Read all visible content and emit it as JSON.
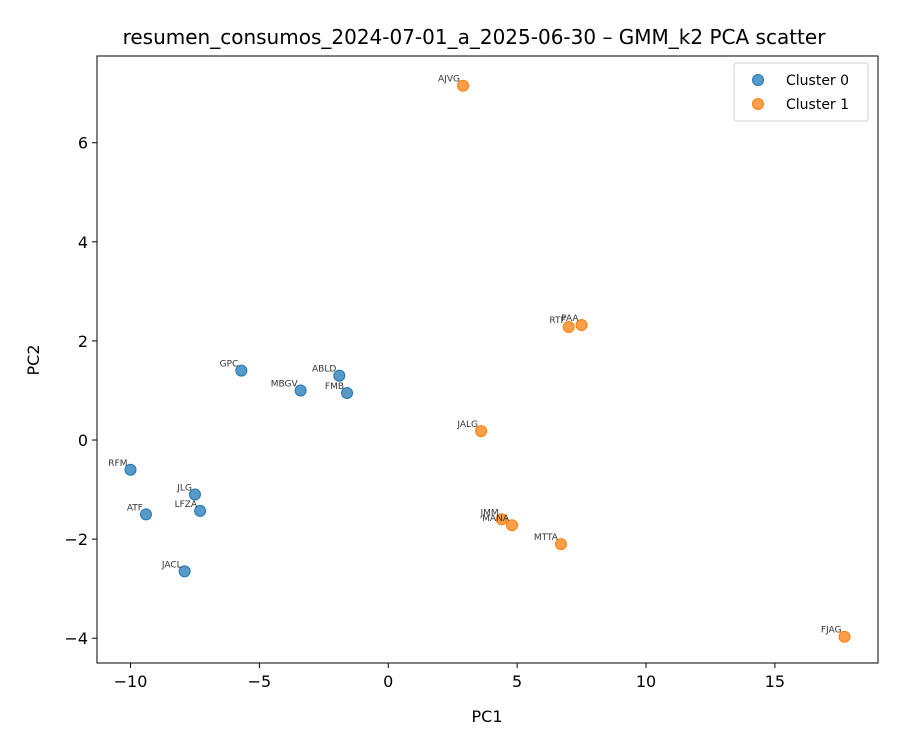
{
  "chart_data": {
    "type": "scatter",
    "title": "resumen_consumos_2024-07-01_a_2025-06-30 – GMM_k2 PCA scatter",
    "xlabel": "PC1",
    "ylabel": "PC2",
    "xlim": [
      -11.3,
      19.0
    ],
    "ylim": [
      -4.5,
      7.75
    ],
    "xticks": [
      -10,
      -5,
      0,
      5,
      10,
      15
    ],
    "yticks": [
      -4,
      -2,
      0,
      2,
      4,
      6
    ],
    "xtick_labels": [
      "−10",
      "−5",
      "0",
      "5",
      "10",
      "15"
    ],
    "ytick_labels": [
      "−4",
      "−2",
      "0",
      "2",
      "4",
      "6"
    ],
    "grid": false,
    "legend_position": "top-right",
    "series": [
      {
        "name": "Cluster 0",
        "color": "#1f77b4",
        "points": [
          {
            "label": "RFM",
            "x": -10.0,
            "y": -0.6
          },
          {
            "label": "ATF",
            "x": -9.4,
            "y": -1.5
          },
          {
            "label": "JACL",
            "x": -7.9,
            "y": -2.65
          },
          {
            "label": "JLG",
            "x": -7.5,
            "y": -1.1
          },
          {
            "label": "LFZA",
            "x": -7.3,
            "y": -1.43
          },
          {
            "label": "GPC",
            "x": -5.7,
            "y": 1.4
          },
          {
            "label": "MBGV",
            "x": -3.4,
            "y": 1.0
          },
          {
            "label": "ABLD",
            "x": -1.9,
            "y": 1.3
          },
          {
            "label": "FMB",
            "x": -1.6,
            "y": 0.95
          }
        ]
      },
      {
        "name": "Cluster 1",
        "color": "#ff7f0e",
        "points": [
          {
            "label": "AJVG",
            "x": 2.9,
            "y": 7.15
          },
          {
            "label": "JALG",
            "x": 3.6,
            "y": 0.18
          },
          {
            "label": "JMM",
            "x": 4.4,
            "y": -1.6
          },
          {
            "label": "MANA",
            "x": 4.8,
            "y": -1.72
          },
          {
            "label": "MTTA",
            "x": 6.7,
            "y": -2.1
          },
          {
            "label": "RTF",
            "x": 7.0,
            "y": 2.28
          },
          {
            "label": "PAA",
            "x": 7.5,
            "y": 2.32
          },
          {
            "label": "FJAG",
            "x": 17.7,
            "y": -3.97
          }
        ]
      }
    ]
  }
}
